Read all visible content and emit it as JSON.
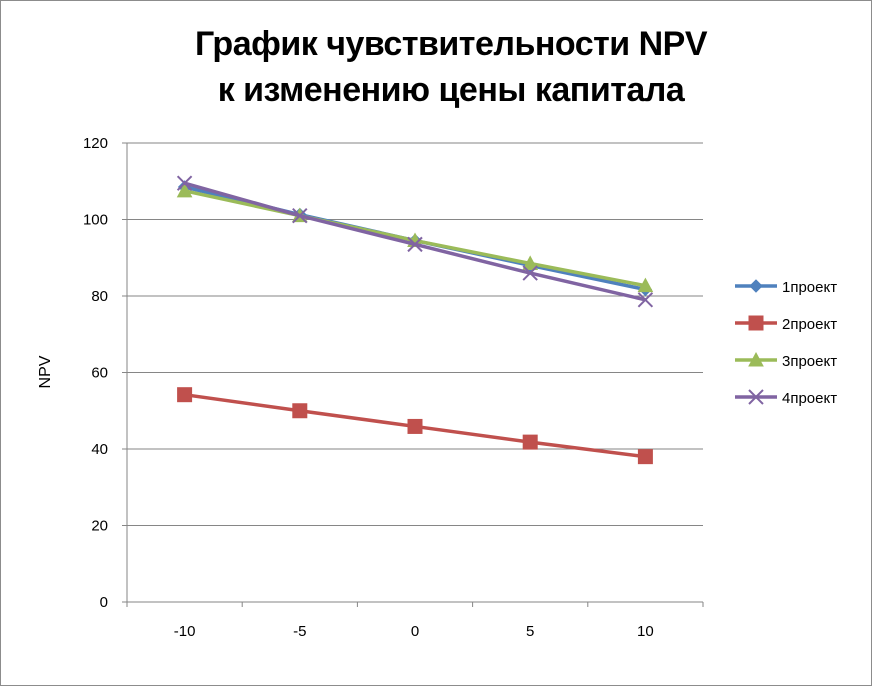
{
  "chart_data": {
    "type": "line",
    "title": "График чувствительности NPV",
    "subtitle": "к изменению цены капитала",
    "xlabel": "",
    "ylabel": "NPV",
    "categories": [
      "-10",
      "-5",
      "0",
      "5",
      "10"
    ],
    "ylim": [
      0,
      120
    ],
    "yticks": [
      0,
      20,
      40,
      60,
      80,
      100,
      120
    ],
    "grid": true,
    "legend_position": "right",
    "series": [
      {
        "name": "1проект",
        "values": [
          108.5,
          101.3,
          94.5,
          88.0,
          81.7
        ],
        "color": "#4f81bd",
        "marker": "diamond"
      },
      {
        "name": "2проект",
        "values": [
          54.2,
          50.0,
          45.9,
          41.8,
          38.0
        ],
        "color": "#c0504d",
        "marker": "square"
      },
      {
        "name": "3проект",
        "values": [
          107.5,
          101.0,
          94.5,
          88.5,
          82.7
        ],
        "color": "#9bbb59",
        "marker": "triangle"
      },
      {
        "name": "4проект",
        "values": [
          109.5,
          101.0,
          93.5,
          86.0,
          79.0
        ],
        "color": "#8064a2",
        "marker": "x"
      }
    ]
  }
}
